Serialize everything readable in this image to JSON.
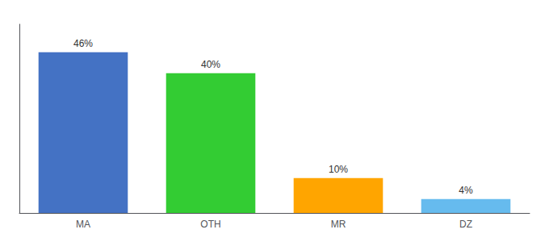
{
  "chart_data": {
    "type": "bar",
    "categories": [
      "MA",
      "OTH",
      "MR",
      "DZ"
    ],
    "values": [
      46,
      40,
      10,
      4
    ],
    "value_labels": [
      "46%",
      "40%",
      "10%",
      "4%"
    ],
    "colors": [
      "#4472C4",
      "#33CC33",
      "#FFA500",
      "#66BBEE"
    ],
    "ylim": [
      0,
      54
    ],
    "grid": false,
    "data_labels": true,
    "tick_labels": "x"
  }
}
